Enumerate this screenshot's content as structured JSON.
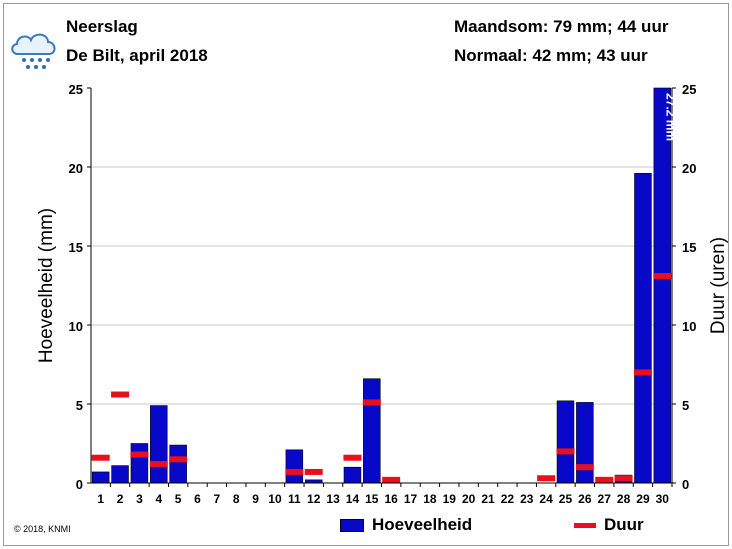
{
  "header": {
    "title": "Neerslag",
    "subtitle": "De Bilt, april 2018",
    "month_sum": "Maandsom: 79 mm; 44 uur",
    "normal": "Normaal: 42 mm; 43 uur"
  },
  "footer": {
    "copyright": "© 2018, KNMI"
  },
  "icon": {
    "name": "rain-cloud-icon"
  },
  "colors": {
    "amount": "#0808c8",
    "duration": "#e8101e",
    "grid": "#c8c8c8"
  },
  "chart_data": {
    "type": "bar",
    "title": "",
    "xlabel": "",
    "ylabel": "Hoeveelheid (mm)",
    "y2label": "Duur (uren)",
    "ylim": [
      0,
      25
    ],
    "y2lim": [
      0,
      25
    ],
    "yticks": [
      0,
      5,
      10,
      15,
      20,
      25
    ],
    "grid": true,
    "legend_position": "bottom",
    "categories": [
      "1",
      "2",
      "3",
      "4",
      "5",
      "6",
      "7",
      "8",
      "9",
      "10",
      "11",
      "12",
      "13",
      "14",
      "15",
      "16",
      "17",
      "18",
      "19",
      "20",
      "21",
      "22",
      "23",
      "24",
      "25",
      "26",
      "27",
      "28",
      "29",
      "30"
    ],
    "series": [
      {
        "name": "Hoeveelheid",
        "type": "bar",
        "axis": "left",
        "values": [
          0.7,
          1.1,
          2.5,
          4.9,
          2.4,
          0,
          0,
          0,
          0,
          0,
          2.1,
          0.2,
          0,
          1.0,
          6.6,
          0,
          0,
          0,
          0,
          0,
          0,
          0,
          0,
          0,
          5.2,
          5.1,
          0,
          0.5,
          19.6,
          27.2
        ]
      },
      {
        "name": "Duur",
        "type": "marker",
        "axis": "right",
        "values": [
          1.6,
          5.6,
          1.8,
          1.2,
          1.5,
          0,
          0,
          0,
          0,
          0,
          0.7,
          0.7,
          0,
          1.6,
          5.1,
          0.2,
          0,
          0,
          0,
          0,
          0,
          0,
          0,
          0.3,
          2.0,
          1.0,
          0.2,
          0.3,
          7.0,
          13.1
        ]
      }
    ],
    "annotations": [
      {
        "category": "30",
        "text": "27.2 mm"
      }
    ]
  }
}
